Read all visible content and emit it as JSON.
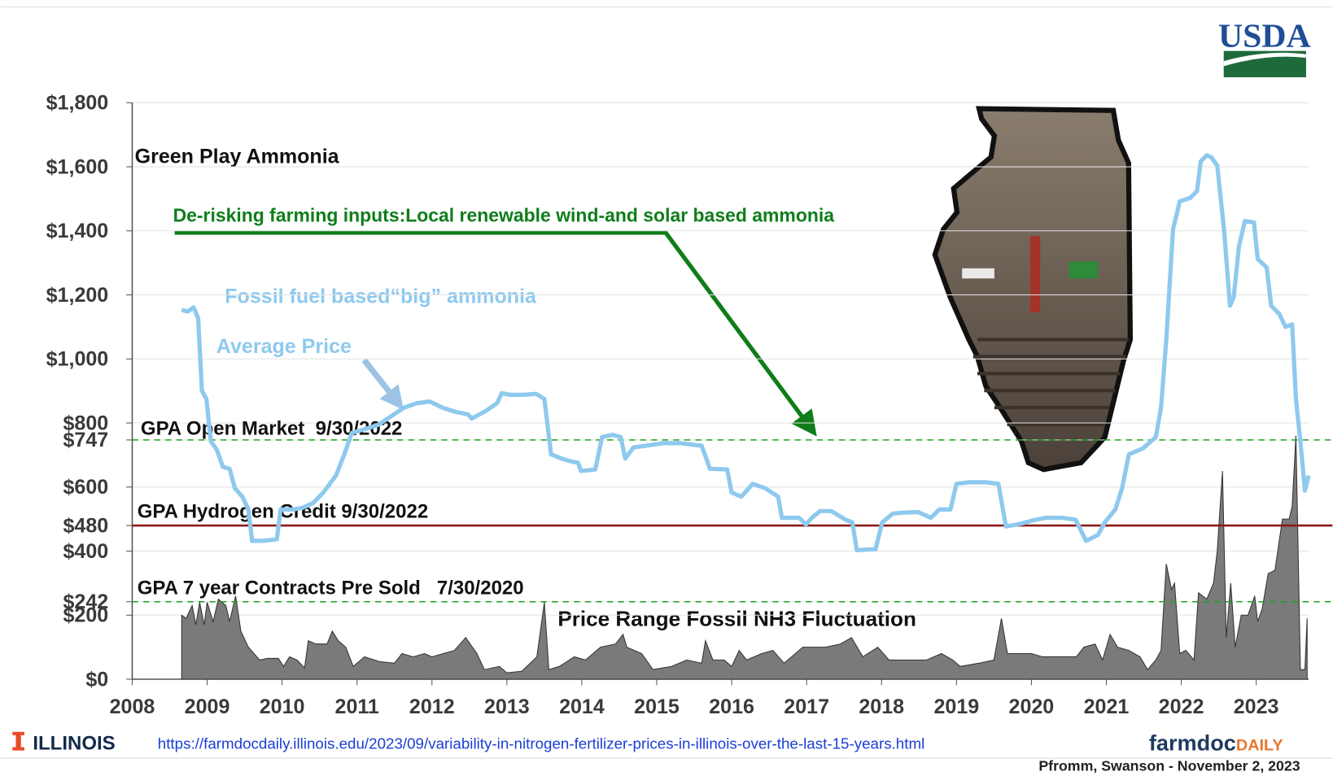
{
  "header": {
    "logo": "USDA"
  },
  "footer": {
    "institution": "ILLINOIS",
    "url": "https://farmdocdaily.illinois.edu/2023/09/variability-in-nitrogen-fertilizer-prices-in-illinois-over-the-last-15-years.html",
    "brand": "farmdoc",
    "brand_suffix": "DAILY",
    "credit": "Pfromm, Swanson - November 2, 2023"
  },
  "chart_data": {
    "type": "line",
    "annotations": [
      {
        "text": "Green Play Ammonia",
        "color": "#111111"
      },
      {
        "text": "De-risking farming inputs:Local renewable wind-and solar based ammonia",
        "color": "#0f7d1a"
      },
      {
        "text": "Fossil fuel based“big” ammonia",
        "color": "#8ec9ee"
      }
    ],
    "xlim": [
      2008,
      2023.7
    ],
    "xticks": [
      2008,
      2009,
      2010,
      2011,
      2012,
      2013,
      2014,
      2015,
      2016,
      2017,
      2018,
      2019,
      2020,
      2021,
      2022,
      2023
    ],
    "ylim": [
      0,
      1800
    ],
    "yticks": [
      {
        "value": 0,
        "label": "$0"
      },
      {
        "value": 200,
        "label": "$200"
      },
      {
        "value": 242,
        "label": "$242"
      },
      {
        "value": 400,
        "label": "$400"
      },
      {
        "value": 480,
        "label": "$480"
      },
      {
        "value": 600,
        "label": "$600"
      },
      {
        "value": 747,
        "label": "$747"
      },
      {
        "value": 800,
        "label": "$800"
      },
      {
        "value": 1000,
        "label": "$1,000"
      },
      {
        "value": 1200,
        "label": "$1,200"
      },
      {
        "value": 1400,
        "label": "$1,400"
      },
      {
        "value": 1600,
        "label": "$1,600"
      },
      {
        "value": 1800,
        "label": "$1,800"
      }
    ],
    "grid": true,
    "reference_lines": [
      {
        "label": "GPA Open Market  9/30/2022",
        "value": 747,
        "color": "#1aa31a",
        "dashed": true
      },
      {
        "label": "GPA Hydrogen Credit 9/30/2022",
        "value": 480,
        "color": "#8b1a1a",
        "dashed": false
      },
      {
        "label": "GPA 7 year Contracts Pre Sold   7/30/2020",
        "value": 242,
        "color": "#1aa31a",
        "dashed": true
      }
    ],
    "series": [
      {
        "name": "Average Price",
        "type": "line",
        "color": "#8ec9ee",
        "x": [
          2008.66,
          2008.74,
          2008.82,
          2008.88,
          2008.93,
          2008.99,
          2009.05,
          2009.13,
          2009.21,
          2009.3,
          2009.37,
          2009.47,
          2009.55,
          2009.6,
          2009.75,
          2009.93,
          2009.98,
          2010.15,
          2010.27,
          2010.42,
          2010.55,
          2010.72,
          2010.83,
          2010.93,
          2011.12,
          2011.29,
          2011.46,
          2011.63,
          2011.8,
          2011.97,
          2012.14,
          2012.31,
          2012.48,
          2012.53,
          2012.7,
          2012.87,
          2012.93,
          2013.05,
          2013.22,
          2013.39,
          2013.5,
          2013.59,
          2013.73,
          2013.84,
          2013.95,
          2013.99,
          2014.18,
          2014.27,
          2014.41,
          2014.52,
          2014.58,
          2014.69,
          2014.86,
          2015.09,
          2015.31,
          2015.6,
          2015.71,
          2015.94,
          2016.0,
          2016.13,
          2016.28,
          2016.45,
          2016.62,
          2016.67,
          2016.9,
          2016.99,
          2017.07,
          2017.18,
          2017.33,
          2017.52,
          2017.61,
          2017.67,
          2017.92,
          2018.01,
          2018.15,
          2018.28,
          2018.49,
          2018.66,
          2018.77,
          2018.92,
          2019.0,
          2019.17,
          2019.39,
          2019.56,
          2019.66,
          2019.85,
          2020.02,
          2020.19,
          2020.41,
          2020.59,
          2020.73,
          2020.89,
          2020.98,
          2021.12,
          2021.21,
          2021.3,
          2021.49,
          2021.66,
          2021.73,
          2021.8,
          2021.89,
          2021.98,
          2022.12,
          2022.21,
          2022.26,
          2022.34,
          2022.4,
          2022.48,
          2022.57,
          2022.65,
          2022.7,
          2022.77,
          2022.85,
          2022.97,
          2023.02,
          2023.14,
          2023.2,
          2023.31,
          2023.39,
          2023.48,
          2023.53,
          2023.59,
          2023.65,
          2023.7
        ],
        "values": [
          1153,
          1148,
          1161,
          1127,
          901,
          875,
          742,
          716,
          663,
          657,
          596,
          570,
          530,
          432,
          432,
          437,
          530,
          530,
          535,
          551,
          583,
          636,
          702,
          769,
          782,
          795,
          822,
          848,
          862,
          867,
          848,
          835,
          827,
          814,
          835,
          862,
          893,
          888,
          888,
          891,
          875,
          702,
          689,
          681,
          676,
          650,
          655,
          756,
          763,
          756,
          689,
          724,
          729,
          737,
          737,
          729,
          657,
          655,
          583,
          570,
          610,
          596,
          570,
          504,
          504,
          483,
          504,
          525,
          525,
          498,
          490,
          403,
          406,
          490,
          517,
          520,
          522,
          504,
          530,
          530,
          610,
          615,
          615,
          610,
          477,
          485,
          496,
          504,
          504,
          498,
          432,
          451,
          490,
          530,
          596,
          702,
          721,
          756,
          848,
          1060,
          1405,
          1492,
          1503,
          1524,
          1617,
          1636,
          1630,
          1604,
          1405,
          1166,
          1193,
          1352,
          1431,
          1426,
          1312,
          1286,
          1166,
          1140,
          1100,
          1108,
          875,
          742,
          589,
          636
        ]
      },
      {
        "name": "Price Range Fossil NH3 Fluctuation",
        "type": "area",
        "color": "#7a7a7a",
        "x": [
          2008.66,
          2008.72,
          2008.8,
          2008.85,
          2008.9,
          2008.96,
          2009.0,
          2009.08,
          2009.15,
          2009.25,
          2009.3,
          2009.38,
          2009.45,
          2009.55,
          2009.7,
          2009.8,
          2009.95,
          2010.02,
          2010.1,
          2010.2,
          2010.3,
          2010.35,
          2010.45,
          2010.6,
          2010.67,
          2010.75,
          2010.85,
          2010.95,
          2011.1,
          2011.3,
          2011.5,
          2011.6,
          2011.75,
          2011.9,
          2012.0,
          2012.15,
          2012.3,
          2012.45,
          2012.6,
          2012.7,
          2012.9,
          2013.0,
          2013.2,
          2013.4,
          2013.5,
          2013.56,
          2013.7,
          2013.9,
          2014.05,
          2014.25,
          2014.45,
          2014.55,
          2014.6,
          2014.8,
          2014.95,
          2015.2,
          2015.4,
          2015.6,
          2015.65,
          2015.75,
          2015.9,
          2016.0,
          2016.1,
          2016.2,
          2016.4,
          2016.55,
          2016.7,
          2016.95,
          2017.25,
          2017.45,
          2017.6,
          2017.75,
          2017.95,
          2018.1,
          2018.4,
          2018.6,
          2018.8,
          2018.95,
          2019.05,
          2019.3,
          2019.5,
          2019.6,
          2019.68,
          2019.85,
          2020.0,
          2020.15,
          2020.4,
          2020.6,
          2020.7,
          2020.85,
          2020.95,
          2021.05,
          2021.15,
          2021.3,
          2021.45,
          2021.55,
          2021.66,
          2021.73,
          2021.8,
          2021.87,
          2021.91,
          2021.98,
          2022.06,
          2022.17,
          2022.23,
          2022.34,
          2022.43,
          2022.48,
          2022.55,
          2022.6,
          2022.66,
          2022.72,
          2022.8,
          2022.89,
          2022.98,
          2023.02,
          2023.08,
          2023.16,
          2023.25,
          2023.35,
          2023.44,
          2023.48,
          2023.53,
          2023.59,
          2023.65,
          2023.68
        ],
        "values": [
          200,
          190,
          230,
          170,
          240,
          170,
          240,
          180,
          250,
          230,
          180,
          260,
          150,
          100,
          60,
          65,
          65,
          40,
          70,
          60,
          35,
          120,
          110,
          110,
          150,
          120,
          100,
          40,
          70,
          55,
          50,
          80,
          70,
          80,
          70,
          80,
          90,
          130,
          80,
          30,
          40,
          20,
          25,
          70,
          240,
          30,
          40,
          70,
          60,
          100,
          110,
          140,
          100,
          80,
          30,
          40,
          60,
          50,
          120,
          60,
          60,
          40,
          90,
          60,
          80,
          90,
          50,
          100,
          100,
          110,
          130,
          70,
          100,
          60,
          60,
          60,
          80,
          60,
          40,
          50,
          60,
          190,
          80,
          80,
          80,
          70,
          70,
          70,
          100,
          110,
          60,
          140,
          100,
          90,
          70,
          30,
          60,
          90,
          360,
          280,
          300,
          80,
          90,
          60,
          270,
          250,
          300,
          400,
          650,
          130,
          300,
          100,
          200,
          200,
          260,
          180,
          220,
          330,
          340,
          500,
          500,
          540,
          760,
          30,
          30,
          190
        ]
      }
    ]
  }
}
